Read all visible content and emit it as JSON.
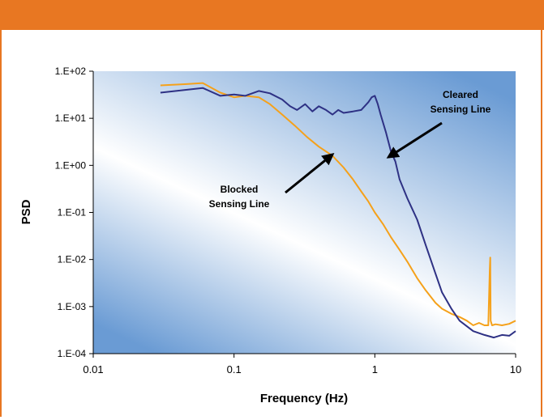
{
  "colors": {
    "banner": "#e87722",
    "cleared_series": "#2e3184",
    "blocked_series": "#f5a11a",
    "plot_gradient_light": "#ffffff",
    "plot_gradient_dark": "#6a9bd4"
  },
  "chart_data": {
    "type": "line",
    "title": "",
    "xlabel": "Frequency (Hz)",
    "ylabel": "PSD",
    "xscale": "log",
    "yscale": "log",
    "xlim": [
      0.01,
      10
    ],
    "ylim": [
      0.0001,
      100
    ],
    "grid": false,
    "legend": "none",
    "x_ticks": [
      {
        "value": 0.01,
        "label": "0.01"
      },
      {
        "value": 0.1,
        "label": "0.1"
      },
      {
        "value": 1,
        "label": "1"
      },
      {
        "value": 10,
        "label": "10"
      }
    ],
    "y_ticks": [
      {
        "value": 100,
        "label": "1.E+02"
      },
      {
        "value": 10,
        "label": "1.E+01"
      },
      {
        "value": 1,
        "label": "1.E+00"
      },
      {
        "value": 0.1,
        "label": "1.E-01"
      },
      {
        "value": 0.01,
        "label": "1.E-02"
      },
      {
        "value": 0.001,
        "label": "1.E-03"
      },
      {
        "value": 0.0001,
        "label": "1.E-04"
      }
    ],
    "series": [
      {
        "color": "#f5a11a",
        "x": [
          0.03,
          0.045,
          0.06,
          0.08,
          0.1,
          0.12,
          0.15,
          0.18,
          0.22,
          0.27,
          0.33,
          0.4,
          0.5,
          0.6,
          0.7,
          0.8,
          0.9,
          1.0,
          1.15,
          1.3,
          1.5,
          1.7,
          2.0,
          2.3,
          2.7,
          3.0,
          3.5,
          4.0,
          4.5,
          5.0,
          5.5,
          6.0,
          6.4,
          6.55,
          6.6,
          6.65,
          6.8,
          7.2,
          8.0,
          9.0,
          10.0
        ],
        "y": [
          50,
          53,
          56,
          35,
          28,
          30,
          28,
          20,
          12,
          7,
          4,
          2.5,
          1.6,
          0.9,
          0.5,
          0.28,
          0.17,
          0.1,
          0.055,
          0.03,
          0.016,
          0.009,
          0.004,
          0.0022,
          0.0012,
          0.0009,
          0.0007,
          0.0006,
          0.0005,
          0.0004,
          0.00045,
          0.0004,
          0.0004,
          0.006,
          0.011,
          0.0005,
          0.0004,
          0.00042,
          0.0004,
          0.00043,
          0.0005
        ]
      },
      {
        "color": "#2e3184",
        "x": [
          0.03,
          0.045,
          0.06,
          0.08,
          0.1,
          0.12,
          0.15,
          0.18,
          0.22,
          0.25,
          0.28,
          0.32,
          0.36,
          0.4,
          0.45,
          0.5,
          0.55,
          0.6,
          0.7,
          0.8,
          0.9,
          0.95,
          1.0,
          1.05,
          1.1,
          1.2,
          1.3,
          1.4,
          1.5,
          1.7,
          2.0,
          2.3,
          2.7,
          3.0,
          3.5,
          4.0,
          5.0,
          6.0,
          7.0,
          8.0,
          9.0,
          10.0
        ],
        "y": [
          35,
          40,
          44,
          30,
          32,
          30,
          38,
          34,
          25,
          18,
          15,
          20,
          14,
          18,
          15,
          12,
          15,
          13,
          14,
          15,
          22,
          28,
          30,
          20,
          12,
          5,
          2,
          1.2,
          0.5,
          0.2,
          0.07,
          0.02,
          0.005,
          0.002,
          0.0009,
          0.0005,
          0.0003,
          0.00025,
          0.00022,
          0.00025,
          0.00024,
          0.0003
        ]
      }
    ],
    "annotations": [
      {
        "lines": [
          "Cleared",
          "Sensing Line"
        ],
        "arrow_to": {
          "x": 1.25,
          "y": 1.5
        }
      },
      {
        "lines": [
          "Blocked",
          "Sensing Line"
        ],
        "arrow_to": {
          "x": 0.5,
          "y": 1.7
        }
      }
    ]
  }
}
